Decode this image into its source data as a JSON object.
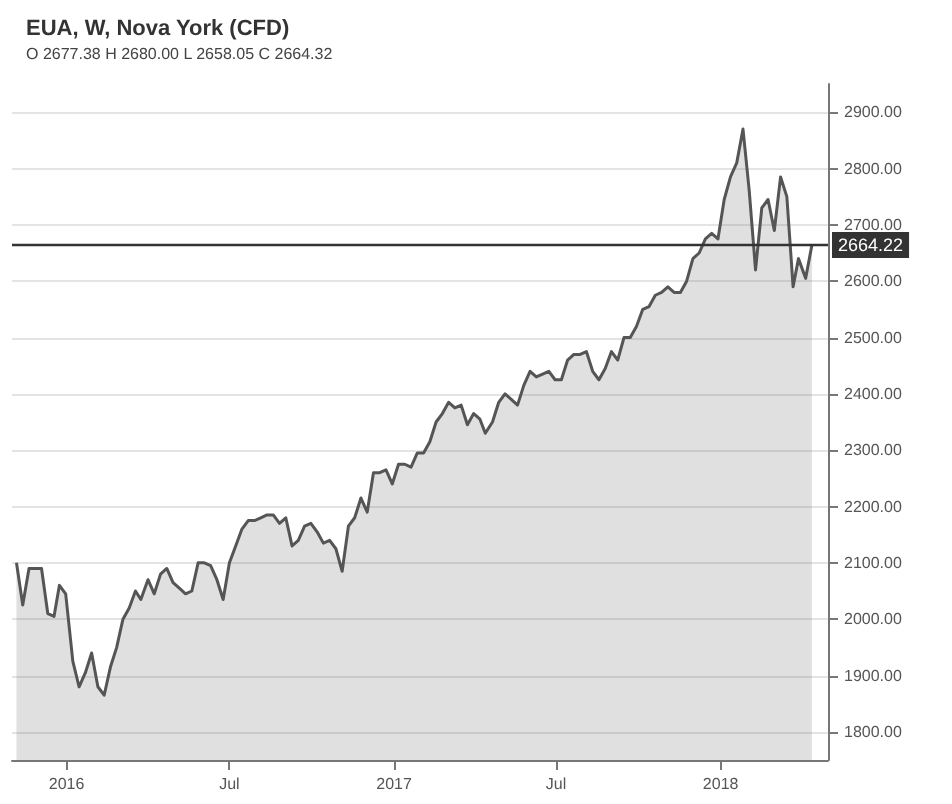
{
  "chart_data": {
    "type": "area",
    "title": "EUA, W, Nova York (CFD)",
    "subtitle": "O 2677.38 H 2680.00 L 2658.05 C 2664.32",
    "x": [
      "2015-11-06",
      "2015-11-13",
      "2015-11-20",
      "2015-11-27",
      "2015-12-04",
      "2015-12-11",
      "2015-12-18",
      "2015-12-24",
      "2015-12-31",
      "2016-01-08",
      "2016-01-15",
      "2016-01-22",
      "2016-01-29",
      "2016-02-05",
      "2016-02-12",
      "2016-02-19",
      "2016-02-26",
      "2016-03-04",
      "2016-03-11",
      "2016-03-18",
      "2016-03-24",
      "2016-04-01",
      "2016-04-08",
      "2016-04-15",
      "2016-04-22",
      "2016-04-29",
      "2016-05-06",
      "2016-05-13",
      "2016-05-20",
      "2016-05-27",
      "2016-06-03",
      "2016-06-10",
      "2016-06-17",
      "2016-06-24",
      "2016-07-01",
      "2016-07-08",
      "2016-07-15",
      "2016-07-22",
      "2016-07-29",
      "2016-08-05",
      "2016-08-12",
      "2016-08-19",
      "2016-08-26",
      "2016-09-02",
      "2016-09-09",
      "2016-09-16",
      "2016-09-23",
      "2016-09-30",
      "2016-10-07",
      "2016-10-14",
      "2016-10-21",
      "2016-10-28",
      "2016-11-04",
      "2016-11-11",
      "2016-11-18",
      "2016-11-25",
      "2016-12-02",
      "2016-12-09",
      "2016-12-16",
      "2016-12-23",
      "2016-12-30",
      "2017-01-06",
      "2017-01-13",
      "2017-01-20",
      "2017-01-27",
      "2017-02-03",
      "2017-02-10",
      "2017-02-17",
      "2017-02-24",
      "2017-03-03",
      "2017-03-10",
      "2017-03-17",
      "2017-03-24",
      "2017-03-31",
      "2017-04-07",
      "2017-04-13",
      "2017-04-21",
      "2017-04-28",
      "2017-05-05",
      "2017-05-12",
      "2017-05-19",
      "2017-05-26",
      "2017-06-02",
      "2017-06-09",
      "2017-06-16",
      "2017-06-23",
      "2017-06-30",
      "2017-07-07",
      "2017-07-14",
      "2017-07-21",
      "2017-07-28",
      "2017-08-04",
      "2017-08-11",
      "2017-08-18",
      "2017-08-25",
      "2017-09-01",
      "2017-09-08",
      "2017-09-15",
      "2017-09-22",
      "2017-09-29",
      "2017-10-06",
      "2017-10-13",
      "2017-10-20",
      "2017-10-27",
      "2017-11-03",
      "2017-11-10",
      "2017-11-17",
      "2017-11-24",
      "2017-12-01",
      "2017-12-08",
      "2017-12-15",
      "2017-12-22",
      "2017-12-29",
      "2018-01-05",
      "2018-01-12",
      "2018-01-19",
      "2018-01-26",
      "2018-02-02",
      "2018-02-09",
      "2018-02-16",
      "2018-02-23",
      "2018-03-02",
      "2018-03-09",
      "2018-03-16",
      "2018-03-23",
      "2018-03-29",
      "2018-04-06",
      "2018-04-13"
    ],
    "values": [
      2100,
      2025,
      2090,
      2090,
      2090,
      2010,
      2005,
      2060,
      2045,
      1925,
      1880,
      1905,
      1940,
      1880,
      1865,
      1915,
      1950,
      2000,
      2020,
      2050,
      2035,
      2070,
      2045,
      2080,
      2090,
      2065,
      2055,
      2045,
      2050,
      2100,
      2100,
      2095,
      2070,
      2035,
      2100,
      2130,
      2160,
      2175,
      2175,
      2180,
      2185,
      2185,
      2170,
      2180,
      2130,
      2140,
      2165,
      2170,
      2155,
      2135,
      2140,
      2125,
      2085,
      2165,
      2180,
      2215,
      2190,
      2260,
      2260,
      2265,
      2240,
      2275,
      2275,
      2270,
      2295,
      2295,
      2315,
      2350,
      2365,
      2385,
      2375,
      2380,
      2345,
      2365,
      2355,
      2330,
      2350,
      2385,
      2400,
      2390,
      2380,
      2415,
      2440,
      2430,
      2435,
      2440,
      2425,
      2425,
      2460,
      2470,
      2470,
      2475,
      2440,
      2425,
      2445,
      2475,
      2460,
      2500,
      2500,
      2520,
      2550,
      2555,
      2575,
      2580,
      2590,
      2580,
      2580,
      2600,
      2640,
      2650,
      2675,
      2685,
      2675,
      2745,
      2785,
      2810,
      2870,
      2760,
      2620,
      2730,
      2745,
      2690,
      2785,
      2750,
      2590,
      2640,
      2605,
      2664
    ],
    "color": "#555555",
    "xlim": [
      "2015-11-01",
      "2018-05-01"
    ],
    "xticks": [
      {
        "value": "2016-01-01",
        "label": "2016"
      },
      {
        "value": "2016-07-01",
        "label": "Jul"
      },
      {
        "value": "2017-01-01",
        "label": "2017"
      },
      {
        "value": "2017-07-01",
        "label": "Jul"
      },
      {
        "value": "2018-01-01",
        "label": "2018"
      }
    ],
    "ylim": [
      1750,
      2950
    ],
    "yticks": [
      {
        "value": 1800,
        "label": "1800.00"
      },
      {
        "value": 1900,
        "label": "1900.00"
      },
      {
        "value": 2000,
        "label": "2000.00"
      },
      {
        "value": 2100,
        "label": "2100.00"
      },
      {
        "value": 2200,
        "label": "2200.00"
      },
      {
        "value": 2300,
        "label": "2300.00"
      },
      {
        "value": 2400,
        "label": "2400.00"
      },
      {
        "value": 2500,
        "label": "2500.00"
      },
      {
        "value": 2600,
        "label": "2600.00"
      },
      {
        "value": 2700,
        "label": "2700.00"
      },
      {
        "value": 2800,
        "label": "2800.00"
      },
      {
        "value": 2900,
        "label": "2900.00"
      }
    ],
    "ref_lines": [
      {
        "axis": "y",
        "value": 2664.22,
        "label": "2664.22",
        "color": "#333333"
      }
    ],
    "grid": "y"
  }
}
